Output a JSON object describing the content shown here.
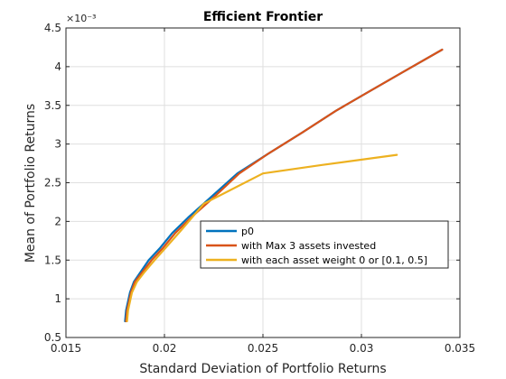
{
  "chart_data": {
    "type": "line",
    "title": "Efficient Frontier",
    "xlabel": "Standard Deviation of Portfolio Returns",
    "ylabel": "Mean of Portfolio Returns",
    "xlim": [
      0.015,
      0.035
    ],
    "ylim": [
      0.5,
      4.5
    ],
    "y_exponent_label": "×10⁻³",
    "x_ticks": [
      "0.015",
      "0.02",
      "0.025",
      "0.03",
      "0.035"
    ],
    "y_ticks": [
      "0.5",
      "1",
      "1.5",
      "2",
      "2.5",
      "3",
      "3.5",
      "4",
      "4.5"
    ],
    "grid": true,
    "legend_position": "center-right",
    "series": [
      {
        "name": "p0",
        "color": "#0072BD",
        "x": [
          0.018,
          0.01805,
          0.01825,
          0.01845,
          0.0188,
          0.0192,
          0.01975,
          0.0204,
          0.0212,
          0.0223,
          0.0237,
          0.0253,
          0.027,
          0.0287,
          0.0304,
          0.0321,
          0.0341
        ],
        "y": [
          0.71,
          0.85,
          1.08,
          1.22,
          1.35,
          1.5,
          1.65,
          1.85,
          2.05,
          2.3,
          2.62,
          2.88,
          3.15,
          3.43,
          3.68,
          3.93,
          4.22
        ]
      },
      {
        "name": "with Max 3 assets invested",
        "color": "#D95319",
        "x": [
          0.01805,
          0.0181,
          0.0183,
          0.0185,
          0.0189,
          0.01935,
          0.0199,
          0.02055,
          0.02135,
          0.02245,
          0.0238,
          0.0253,
          0.027,
          0.0287,
          0.0304,
          0.0321,
          0.0341
        ],
        "y": [
          0.71,
          0.85,
          1.08,
          1.22,
          1.35,
          1.5,
          1.65,
          1.85,
          2.05,
          2.3,
          2.62,
          2.88,
          3.15,
          3.43,
          3.68,
          3.93,
          4.22
        ]
      },
      {
        "name": "with each asset weight 0 or [0.1, 0.5]",
        "color": "#EDB120",
        "x": [
          0.0181,
          0.01815,
          0.01835,
          0.0186,
          0.019,
          0.0195,
          0.0201,
          0.0209,
          0.022,
          0.025,
          0.028,
          0.0318
        ],
        "y": [
          0.71,
          0.85,
          1.08,
          1.22,
          1.35,
          1.5,
          1.67,
          1.9,
          2.23,
          2.62,
          2.73,
          2.86
        ]
      }
    ]
  }
}
